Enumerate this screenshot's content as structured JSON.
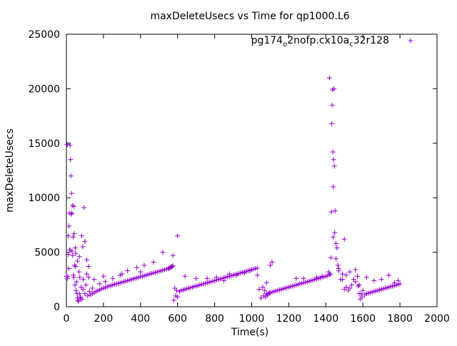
{
  "chart_data": {
    "type": "scatter",
    "title": "maxDeleteUsecs vs Time for qp1000.L6",
    "xlabel": "Time(s)",
    "ylabel": "maxDeleteUsecs",
    "xlim": [
      0,
      2000
    ],
    "ylim": [
      0,
      25000
    ],
    "x_ticks": [
      "0",
      "200",
      "400",
      "600",
      "800",
      "1000",
      "1200",
      "1400",
      "1600",
      "1800",
      "2000"
    ],
    "y_ticks": [
      "0",
      "5000",
      "10000",
      "15000",
      "20000",
      "25000"
    ],
    "grid": false,
    "legend_position": "top-right",
    "marker": "plus",
    "color": "#9400D3",
    "series": [
      {
        "name": "pg174_o2nofp.cx10a_c32r128",
        "legend": {
          "base": "pg174",
          "sub1": "o",
          "mid": "2nofp.cx10a",
          "sub2": "c",
          "tail": "32r128"
        },
        "x": [
          0,
          4,
          6,
          8,
          10,
          12,
          14,
          16,
          18,
          20,
          22,
          24,
          26,
          28,
          30,
          32,
          34,
          36,
          38,
          40,
          42,
          44,
          46,
          48,
          50,
          52,
          55,
          58,
          60,
          62,
          65,
          68,
          70,
          72,
          75,
          78,
          80,
          82,
          85,
          88,
          90,
          95,
          100,
          105,
          110,
          115,
          120,
          125,
          130,
          140,
          150,
          160,
          170,
          180,
          190,
          200,
          210,
          220,
          230,
          240,
          250,
          260,
          270,
          280,
          290,
          300,
          310,
          320,
          330,
          340,
          350,
          360,
          370,
          380,
          390,
          400,
          410,
          420,
          430,
          440,
          450,
          460,
          470,
          480,
          490,
          500,
          510,
          520,
          530,
          540,
          550,
          555,
          560,
          565,
          570,
          575,
          580,
          585,
          590,
          595,
          600,
          610,
          620,
          630,
          640,
          650,
          660,
          670,
          680,
          690,
          700,
          710,
          720,
          730,
          740,
          750,
          760,
          770,
          780,
          790,
          800,
          810,
          820,
          830,
          840,
          850,
          860,
          870,
          880,
          890,
          900,
          910,
          920,
          930,
          940,
          950,
          960,
          970,
          980,
          990,
          1000,
          1010,
          1020,
          1030,
          1040,
          1050,
          1060,
          1065,
          1070,
          1075,
          1080,
          1085,
          1090,
          1095,
          1100,
          1110,
          1120,
          1130,
          1140,
          1150,
          1160,
          1170,
          1180,
          1190,
          1200,
          1210,
          1220,
          1230,
          1240,
          1250,
          1260,
          1270,
          1280,
          1290,
          1300,
          1310,
          1320,
          1330,
          1340,
          1350,
          1360,
          1370,
          1380,
          1390,
          1400,
          1410,
          1420,
          1425,
          1428,
          1430,
          1432,
          1434,
          1436,
          1438,
          1440,
          1442,
          1444,
          1446,
          1448,
          1450,
          1455,
          1460,
          1465,
          1470,
          1480,
          1490,
          1500,
          1510,
          1520,
          1530,
          1540,
          1550,
          1560,
          1570,
          1575,
          1580,
          1585,
          1590,
          1595,
          1600,
          1610,
          1620,
          1630,
          1640,
          1650,
          1660,
          1670,
          1680,
          1690,
          1700,
          1710,
          1720,
          1730,
          1740,
          1750,
          1760,
          1770,
          1780,
          1790,
          1800,
          1500,
          1240,
          1100,
          1080,
          1110,
          1280,
          1350,
          1380,
          1415,
          1420,
          1440,
          1455,
          1470,
          1490,
          1510,
          1530,
          1560,
          1580,
          1620,
          1660,
          1700,
          1740,
          1770,
          1790,
          575,
          600,
          640,
          700,
          760,
          810,
          850,
          880,
          920,
          960,
          990,
          1030,
          60,
          90,
          110,
          140,
          180,
          210,
          250,
          290,
          330,
          380,
          420,
          470,
          520,
          10,
          20,
          30,
          40,
          50,
          70,
          100,
          120,
          150,
          200,
          300,
          400
        ],
        "y": [
          2800,
          14900,
          2600,
          2800,
          4800,
          3500,
          7400,
          8600,
          5200,
          14800,
          13500,
          12000,
          8500,
          10400,
          5100,
          9300,
          4700,
          6400,
          2900,
          2700,
          6700,
          3800,
          2000,
          5400,
          3700,
          1500,
          2300,
          1200,
          800,
          600,
          500,
          3200,
          1200,
          2700,
          900,
          700,
          1800,
          6500,
          700,
          5500,
          2500,
          9100,
          1200,
          2000,
          4300,
          1000,
          3700,
          1400,
          1100,
          1200,
          1300,
          1400,
          1500,
          1550,
          1650,
          1700,
          1750,
          1850,
          1900,
          1950,
          2000,
          2050,
          2100,
          2150,
          2200,
          2250,
          2300,
          2350,
          2400,
          2450,
          2500,
          2550,
          2600,
          2650,
          2700,
          2750,
          2800,
          2850,
          2900,
          2950,
          3000,
          3050,
          3100,
          3150,
          3200,
          3250,
          3300,
          3350,
          3400,
          3450,
          3500,
          3550,
          3600,
          3650,
          3700,
          3750,
          600,
          1700,
          1000,
          1500,
          900,
          1400,
          1500,
          1550,
          1600,
          1650,
          1700,
          1750,
          1800,
          1850,
          1900,
          1950,
          2000,
          2050,
          2100,
          2150,
          2200,
          2250,
          2300,
          2350,
          2400,
          2450,
          2500,
          2550,
          2600,
          2650,
          2700,
          2750,
          2800,
          2850,
          2900,
          2950,
          3000,
          3050,
          3100,
          3150,
          3200,
          3250,
          3300,
          3350,
          3400,
          3450,
          3500,
          3550,
          1600,
          800,
          1800,
          1000,
          1500,
          900,
          1200,
          1100,
          1200,
          1250,
          1300,
          1350,
          1400,
          1450,
          1500,
          1550,
          1600,
          1650,
          1700,
          1750,
          1800,
          1850,
          1900,
          1950,
          2000,
          2050,
          2100,
          2150,
          2200,
          2250,
          2300,
          2350,
          2400,
          2450,
          2500,
          2550,
          2600,
          2650,
          2700,
          2750,
          2800,
          2850,
          2950,
          3000,
          4500,
          8700,
          16800,
          18500,
          19900,
          14200,
          11000,
          13500,
          20000,
          12900,
          6800,
          8800,
          5800,
          5400,
          3800,
          3300,
          2500,
          2500,
          1600,
          1800,
          1500,
          1700,
          2000,
          2500,
          3400,
          2800,
          1900,
          1200,
          700,
          1200,
          900,
          1500,
          1100,
          1200,
          1250,
          1300,
          1350,
          1400,
          1450,
          1500,
          1550,
          1600,
          1650,
          1700,
          1750,
          1800,
          1850,
          1900,
          1950,
          2000,
          2050,
          2100,
          6200,
          2600,
          3800,
          2200,
          4100,
          2600,
          2700,
          2800,
          3200,
          21000,
          6400,
          4400,
          3500,
          3000,
          2900,
          3200,
          2300,
          2000,
          2700,
          2400,
          2500,
          2900,
          2200,
          2400,
          4700,
          6500,
          2800,
          2600,
          2600,
          2700,
          2400,
          3000,
          2900,
          3100,
          3300,
          2900,
          4200,
          1600,
          3000,
          1700,
          2100,
          2300,
          2600,
          2900,
          3300,
          3600,
          3800,
          4100,
          5000,
          6500,
          5200,
          8600,
          9200,
          4900,
          4600,
          6000,
          2700,
          2500,
          2800,
          3000,
          3200
        ]
      }
    ]
  }
}
